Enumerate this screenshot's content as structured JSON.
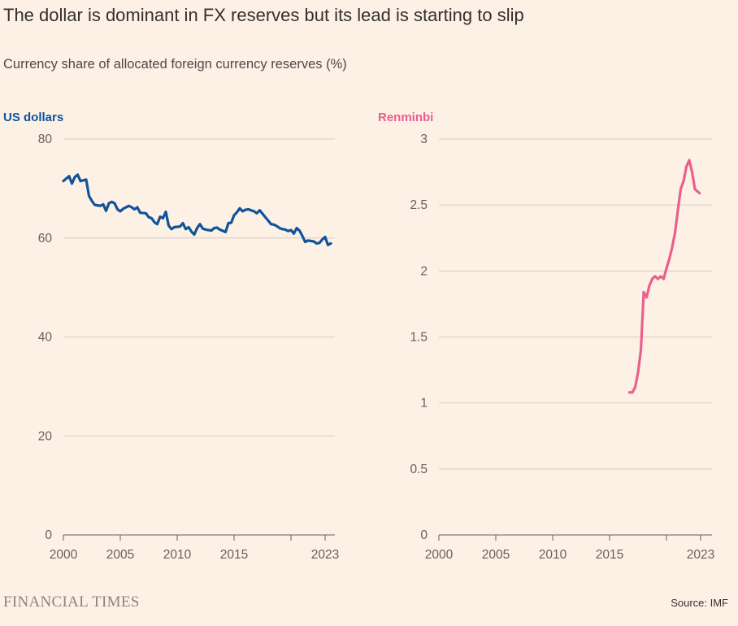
{
  "title": "The dollar is dominant in FX reserves but its lead is starting to slip",
  "subtitle": "Currency share of allocated foreign currency reserves (%)",
  "brand": "FINANCIAL TIMES",
  "source": "Source: IMF",
  "chart_data": [
    {
      "type": "line",
      "title": "US dollars",
      "color": "#0f5499",
      "ylim": [
        0,
        80
      ],
      "yticks": [
        "80",
        "60",
        "40",
        "20",
        "0"
      ],
      "ytick_values": [
        80,
        60,
        40,
        20,
        0
      ],
      "xlim": [
        2000,
        2023.6
      ],
      "xticks": [
        "2000",
        "2005",
        "2010",
        "2015",
        "2023"
      ],
      "xtick_values": [
        2000,
        2005,
        2010,
        2015,
        2023
      ],
      "extra_tick_marks": [
        2020
      ],
      "grid": true,
      "x": [
        2000,
        2000.25,
        2000.5,
        2000.75,
        2001,
        2001.25,
        2001.5,
        2002,
        2002.25,
        2002.5,
        2002.75,
        2003.25,
        2003.5,
        2003.75,
        2004,
        2004.25,
        2004.5,
        2004.75,
        2005,
        2005.25,
        2005.75,
        2006,
        2006.25,
        2006.5,
        2006.75,
        2007.25,
        2007.5,
        2007.75,
        2008,
        2008.25,
        2008.5,
        2008.75,
        2009,
        2009.25,
        2009.5,
        2009.75,
        2010.25,
        2010.5,
        2010.75,
        2011,
        2011.25,
        2011.5,
        2011.75,
        2012,
        2012.25,
        2012.5,
        2013,
        2013.25,
        2013.5,
        2013.75,
        2014.25,
        2014.5,
        2014.75,
        2015,
        2015.25,
        2015.5,
        2015.75,
        2016,
        2016.25,
        2016.5,
        2016.75,
        2017,
        2017.25,
        2017.5,
        2017.75,
        2018,
        2018.25,
        2018.5,
        2018.75,
        2019,
        2019.25,
        2019.5,
        2019.75,
        2020,
        2020.25,
        2020.5,
        2020.75,
        2021,
        2021.25,
        2021.5,
        2021.75,
        2022,
        2022.25,
        2022.5,
        2022.75,
        2023,
        2023.25,
        2023.5
      ],
      "values": [
        71.5,
        72,
        72.5,
        71,
        72.3,
        72.8,
        71.5,
        71.8,
        68.5,
        67.5,
        66.7,
        66.5,
        66.8,
        65.5,
        67,
        67.3,
        67,
        65.8,
        65.4,
        65.9,
        66.5,
        66.2,
        65.8,
        66.2,
        65.1,
        65,
        64.2,
        64,
        63.2,
        62.8,
        64.3,
        64,
        65.3,
        62.5,
        61.8,
        62.2,
        62.3,
        63,
        61.8,
        62.2,
        61.3,
        60.7,
        62,
        62.8,
        61.9,
        61.7,
        61.5,
        62,
        62.1,
        61.7,
        61.2,
        63,
        63.1,
        64.6,
        65.2,
        66,
        65.4,
        65.7,
        65.8,
        65.6,
        65.4,
        65,
        65.6,
        64.9,
        64.2,
        63.5,
        62.8,
        62.7,
        62.4,
        62,
        61.8,
        61.7,
        61.4,
        61.6,
        60.9,
        62,
        61.5,
        60.4,
        59.2,
        59.5,
        59.4,
        59.3,
        58.9,
        59,
        59.7,
        60.2,
        58.6,
        58.9
      ]
    },
    {
      "type": "line",
      "title": "Renminbi",
      "color": "#eb5e8d",
      "ylim": [
        0,
        3
      ],
      "yticks": [
        "3",
        "2.5",
        "2",
        "1.5",
        "1",
        "0.5",
        "0"
      ],
      "ytick_values": [
        3,
        2.5,
        2,
        1.5,
        1,
        0.5,
        0
      ],
      "xlim": [
        2000,
        2023.6
      ],
      "xticks": [
        "2000",
        "2005",
        "2010",
        "2015",
        "2023"
      ],
      "xtick_values": [
        2000,
        2005,
        2010,
        2015,
        2023
      ],
      "extra_tick_marks": [
        2020
      ],
      "grid": true,
      "x": [
        2016.75,
        2017,
        2017.25,
        2017.5,
        2017.75,
        2018,
        2018.25,
        2018.5,
        2018.75,
        2019,
        2019.25,
        2019.5,
        2019.75,
        2020,
        2020.25,
        2020.5,
        2020.75,
        2021,
        2021.25,
        2021.5,
        2021.75,
        2022,
        2022.25,
        2022.5,
        2022.9
      ],
      "values": [
        1.08,
        1.08,
        1.12,
        1.23,
        1.4,
        1.84,
        1.8,
        1.89,
        1.94,
        1.96,
        1.94,
        1.96,
        1.94,
        2.02,
        2.09,
        2.18,
        2.29,
        2.46,
        2.62,
        2.68,
        2.79,
        2.84,
        2.75,
        2.62,
        2.59
      ]
    }
  ]
}
